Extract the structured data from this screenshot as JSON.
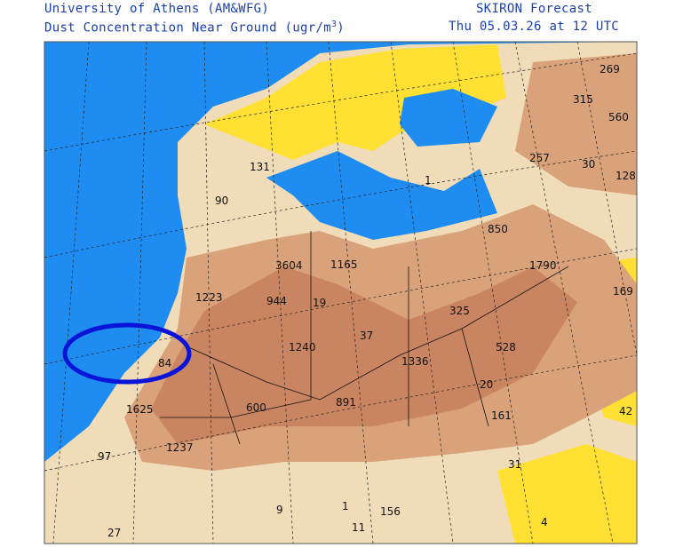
{
  "header": {
    "source": "University of Athens (AM&WFG)",
    "subtitle": "Dust Concentration Near Ground (ugr/m",
    "subtitle_superscript": "3",
    "subtitle_end": ")",
    "model": "SKIRON Forecast",
    "valid_time": "Thu 05.03.26 at 12 UTC"
  },
  "labels": [
    "269",
    "315",
    "560",
    "257",
    "30",
    "128",
    "131",
    "90",
    "1",
    "850",
    "3604",
    "1165",
    "1790",
    "1223",
    "944",
    "19",
    "169",
    "325",
    "37",
    "1240",
    "1336",
    "528",
    "84",
    "20",
    "1625",
    "600",
    "891",
    "161",
    "42",
    "1237",
    "97",
    "31",
    "9",
    "1",
    "156",
    "27",
    "11",
    "4"
  ]
}
